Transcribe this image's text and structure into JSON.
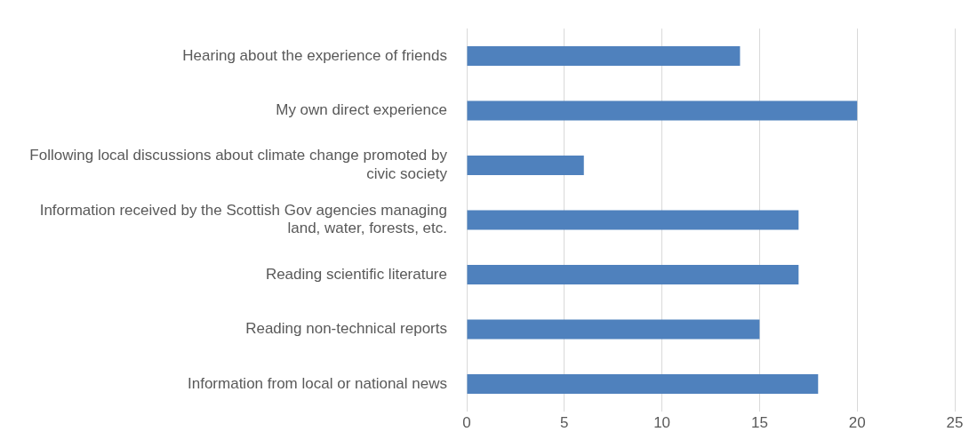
{
  "chart_data": {
    "type": "bar",
    "orientation": "horizontal",
    "categories": [
      "Hearing about the experience of friends",
      "My own direct experience",
      "Following local discussions about climate change promoted by civic society",
      "Information received by the Scottish Gov agencies managing land, water, forests, etc.",
      "Reading scientific literature",
      "Reading non-technical reports",
      "Information from local or national news"
    ],
    "values": [
      14,
      20,
      6,
      17,
      17,
      15,
      18
    ],
    "color": "#4f81bd",
    "xlim": [
      0,
      25
    ],
    "xticks": [
      0,
      5,
      10,
      15,
      20,
      25
    ],
    "grid": "x",
    "legend": false
  }
}
